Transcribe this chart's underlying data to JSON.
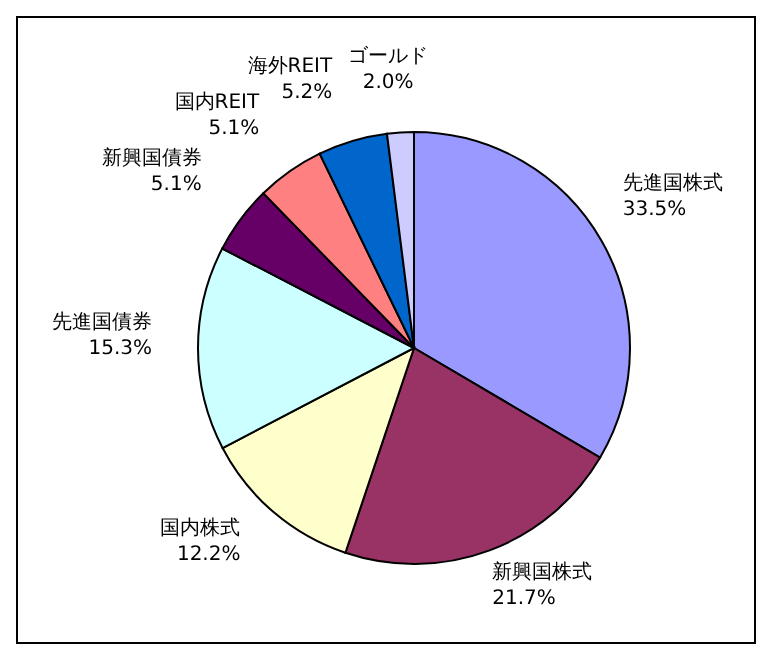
{
  "chart_data": {
    "type": "pie",
    "categories": [
      "先進国株式",
      "新興国株式",
      "国内株式",
      "先進国債券",
      "新興国債券",
      "国内REIT",
      "海外REIT",
      "ゴールド"
    ],
    "values": [
      33.5,
      21.7,
      12.2,
      15.3,
      5.1,
      5.1,
      5.2,
      2.0
    ],
    "value_labels": [
      "33.5%",
      "21.7%",
      "12.2%",
      "15.3%",
      "5.1%",
      "5.1%",
      "5.2%",
      "2.0%"
    ],
    "colors": [
      "#9999ff",
      "#993366",
      "#ffffcc",
      "#ccffff",
      "#660066",
      "#ff8080",
      "#0066cc",
      "#ccccff"
    ]
  }
}
